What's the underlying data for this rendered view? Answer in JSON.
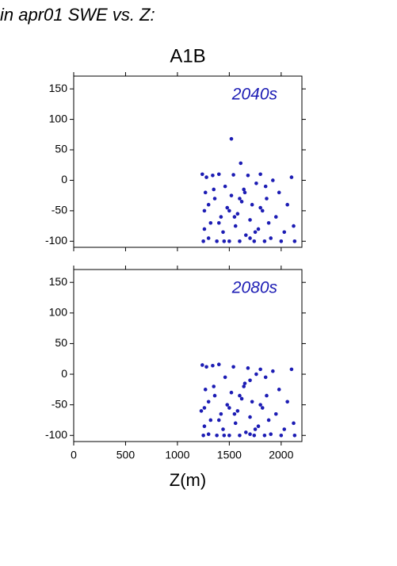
{
  "header": "in apr01 SWE vs. Z:",
  "chart_data": [
    {
      "type": "scatter",
      "title": "A1B",
      "annotation": "2040s",
      "xlim": [
        0,
        2200
      ],
      "ylim": [
        -110,
        171
      ],
      "yticks": [
        -100,
        -50,
        0,
        50,
        100,
        150
      ],
      "series": [
        {
          "color": "#1c1cb4",
          "x": [
            1240,
            1250,
            1260,
            1270,
            1280,
            1300,
            1320,
            1340,
            1360,
            1380,
            1400,
            1420,
            1440,
            1460,
            1480,
            1500,
            1520,
            1540,
            1560,
            1580,
            1600,
            1620,
            1640,
            1660,
            1680,
            1700,
            1720,
            1740,
            1760,
            1780,
            1800,
            1820,
            1840,
            1860,
            1880,
            1900,
            1920,
            1950,
            1980,
            2000,
            2030,
            2060,
            2100,
            2120,
            2130,
            1520,
            1610,
            1300,
            1450,
            1550,
            1650,
            1750,
            1850,
            1400,
            1500,
            1600,
            1700,
            1800,
            1260,
            1350
          ],
          "values": [
            10,
            -100,
            -50,
            -20,
            5,
            -95,
            -70,
            8,
            -30,
            -100,
            10,
            -60,
            -85,
            -10,
            -45,
            -100,
            -25,
            9,
            -75,
            -55,
            -100,
            -35,
            -15,
            -90,
            8,
            -65,
            -40,
            -100,
            -5,
            -80,
            10,
            -50,
            -100,
            -30,
            -70,
            -95,
            0,
            -60,
            -20,
            -100,
            -85,
            -40,
            5,
            -75,
            -100,
            68,
            28,
            -40,
            -100,
            -60,
            -20,
            -85,
            -10,
            -70,
            -50,
            -30,
            -95,
            -45,
            -80,
            -15
          ]
        }
      ]
    },
    {
      "type": "scatter",
      "annotation": "2080s",
      "xlabel": "Z(m)",
      "xlim": [
        0,
        2200
      ],
      "ylim": [
        -110,
        171
      ],
      "yticks": [
        -100,
        -50,
        0,
        50,
        100,
        150
      ],
      "xticks": [
        0,
        500,
        1000,
        1500,
        2000
      ],
      "series": [
        {
          "color": "#1c1cb4",
          "x": [
            1240,
            1250,
            1260,
            1270,
            1280,
            1300,
            1320,
            1340,
            1360,
            1380,
            1400,
            1420,
            1440,
            1460,
            1480,
            1500,
            1520,
            1540,
            1560,
            1580,
            1600,
            1620,
            1640,
            1660,
            1680,
            1700,
            1720,
            1740,
            1760,
            1780,
            1800,
            1820,
            1840,
            1860,
            1880,
            1900,
            1920,
            1950,
            1980,
            2000,
            2030,
            2060,
            2100,
            2120,
            2130,
            1230,
            1700,
            1300,
            1450,
            1550,
            1650,
            1750,
            1850,
            1400,
            1500,
            1600,
            1700,
            1800,
            1260,
            1350
          ],
          "values": [
            15,
            -100,
            -55,
            -25,
            12,
            -98,
            -75,
            14,
            -35,
            -100,
            16,
            -65,
            -90,
            -5,
            -50,
            -100,
            -30,
            12,
            -80,
            -60,
            -100,
            -40,
            -20,
            -95,
            10,
            -70,
            -45,
            -100,
            0,
            -85,
            8,
            -55,
            -100,
            -35,
            -75,
            -98,
            5,
            -65,
            -25,
            -100,
            -90,
            -45,
            8,
            -80,
            -100,
            -60,
            -10,
            -45,
            -100,
            -65,
            -15,
            -90,
            -5,
            -75,
            -55,
            -35,
            -98,
            -50,
            -85,
            -20
          ]
        }
      ]
    }
  ]
}
